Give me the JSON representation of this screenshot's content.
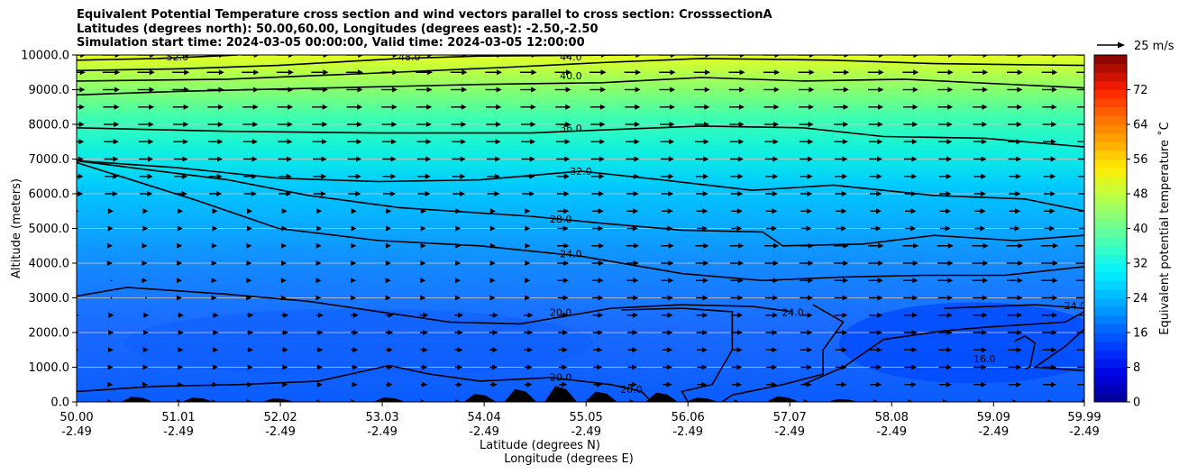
{
  "title_lines": [
    "Equivalent Potential Temperature cross section and wind vectors parallel to cross section: CrosssectionA",
    "Latitudes (degrees north): 50.00,60.00, Longitudes (degrees east): -2.50,-2.50",
    "Simulation start time: 2024-03-05 00:00:00, Valid time: 2024-03-05 12:00:00"
  ],
  "chart_data": {
    "type": "heatmap",
    "subtype": "filled-contour cross section with contour lines and wind quiver",
    "ylabel": "Altitude (meters)",
    "xlabel_lines": [
      "Latitude (degrees N)",
      "Longitude (degrees E)"
    ],
    "ylim": [
      0,
      10000
    ],
    "xlim": [
      50.0,
      59.99
    ],
    "y_ticks": [
      "0.0",
      "1000.0",
      "2000.0",
      "3000.0",
      "4000.0",
      "5000.0",
      "6000.0",
      "7000.0",
      "8000.0",
      "9000.0",
      "10000.0"
    ],
    "x_ticks": [
      {
        "lat": "50.00",
        "lon": "-2.49"
      },
      {
        "lat": "51.01",
        "lon": "-2.49"
      },
      {
        "lat": "52.02",
        "lon": "-2.49"
      },
      {
        "lat": "53.03",
        "lon": "-2.49"
      },
      {
        "lat": "54.04",
        "lon": "-2.49"
      },
      {
        "lat": "55.05",
        "lon": "-2.49"
      },
      {
        "lat": "56.06",
        "lon": "-2.49"
      },
      {
        "lat": "57.07",
        "lon": "-2.49"
      },
      {
        "lat": "58.08",
        "lon": "-2.49"
      },
      {
        "lat": "59.09",
        "lon": "-2.49"
      },
      {
        "lat": "59.99",
        "lon": "-2.49"
      }
    ],
    "grid": "horizontal",
    "colorbar": {
      "label": "Equivalent potential temperature ˚C",
      "min": 0,
      "max": 80,
      "step": 2,
      "ticks": [
        "0",
        "8",
        "16",
        "24",
        "32",
        "40",
        "48",
        "56",
        "64",
        "72"
      ]
    },
    "quiver_key": {
      "label": "25 m/s",
      "speed": 25
    },
    "contour_levels": [
      16,
      20,
      24,
      28,
      32,
      36,
      40,
      44,
      48,
      52
    ],
    "contour_labels": [
      {
        "text": "52.0",
        "lat": 51.0,
        "alt": 9950
      },
      {
        "text": "48.0",
        "lat": 53.3,
        "alt": 9950
      },
      {
        "text": "44.0",
        "lat": 54.9,
        "alt": 9950
      },
      {
        "text": "40.0",
        "lat": 54.9,
        "alt": 9400
      },
      {
        "text": "36.0",
        "lat": 54.9,
        "alt": 7900
      },
      {
        "text": "32.0",
        "lat": 55.0,
        "alt": 6650
      },
      {
        "text": "28.0",
        "lat": 54.8,
        "alt": 5270
      },
      {
        "text": "24.0",
        "lat": 54.9,
        "alt": 4270
      },
      {
        "text": "20.0",
        "lat": 54.8,
        "alt": 2580
      },
      {
        "text": "24.0",
        "lat": 57.1,
        "alt": 2580
      },
      {
        "text": "24.0",
        "lat": 59.9,
        "alt": 2780
      },
      {
        "text": "16.0",
        "lat": 59.0,
        "alt": 1250
      },
      {
        "text": "20.0",
        "lat": 54.8,
        "alt": 720
      },
      {
        "text": "20.0",
        "lat": 55.5,
        "alt": 370
      }
    ],
    "contour_lines": [
      {
        "level": 52,
        "pts": [
          [
            50.0,
            9850
          ],
          [
            50.8,
            9900
          ],
          [
            51.6,
            10000
          ]
        ]
      },
      {
        "level": 48,
        "pts": [
          [
            50.0,
            9550
          ],
          [
            51.0,
            9600
          ],
          [
            52.0,
            9700
          ],
          [
            53.2,
            9900
          ],
          [
            54.0,
            9970
          ],
          [
            55.5,
            10000
          ]
        ]
      },
      {
        "level": 44,
        "pts": [
          [
            50.0,
            9250
          ],
          [
            51.5,
            9300
          ],
          [
            53.0,
            9480
          ],
          [
            54.3,
            9650
          ],
          [
            55.2,
            9780
          ],
          [
            56.2,
            9900
          ],
          [
            57.5,
            9850
          ],
          [
            58.5,
            9750
          ],
          [
            59.99,
            9700
          ]
        ]
      },
      {
        "level": 40,
        "pts": [
          [
            50.0,
            8850
          ],
          [
            51.0,
            8950
          ],
          [
            52.5,
            9050
          ],
          [
            54.0,
            9150
          ],
          [
            55.2,
            9200
          ],
          [
            56.2,
            9350
          ],
          [
            57.2,
            9250
          ],
          [
            58.2,
            9300
          ],
          [
            59.99,
            9050
          ]
        ]
      },
      {
        "level": 36,
        "pts": [
          [
            50.0,
            7900
          ],
          [
            51.5,
            7800
          ],
          [
            53.0,
            7750
          ],
          [
            54.5,
            7750
          ],
          [
            55.3,
            7850
          ],
          [
            56.2,
            7950
          ],
          [
            57.2,
            7900
          ],
          [
            58.0,
            7650
          ],
          [
            59.0,
            7600
          ],
          [
            59.99,
            7350
          ]
        ]
      },
      {
        "level": 32,
        "pts": [
          [
            50.0,
            6950
          ],
          [
            51.0,
            6750
          ],
          [
            52.0,
            6450
          ],
          [
            53.0,
            6350
          ],
          [
            54.0,
            6400
          ],
          [
            55.0,
            6650
          ],
          [
            55.8,
            6400
          ],
          [
            56.7,
            6100
          ],
          [
            57.5,
            6250
          ],
          [
            58.5,
            5950
          ],
          [
            59.4,
            5850
          ],
          [
            59.99,
            5500
          ]
        ]
      },
      {
        "level": 28,
        "pts": [
          [
            50.0,
            6950
          ],
          [
            51.5,
            6400
          ],
          [
            52.3,
            5950
          ],
          [
            53.2,
            5600
          ],
          [
            54.5,
            5350
          ],
          [
            55.2,
            5150
          ],
          [
            56.0,
            4950
          ],
          [
            56.8,
            4900
          ],
          [
            57.0,
            4500
          ],
          [
            57.8,
            4550
          ],
          [
            58.5,
            4800
          ],
          [
            59.3,
            4650
          ],
          [
            59.99,
            4800
          ]
        ]
      },
      {
        "level": 24,
        "pts": [
          [
            50.0,
            6900
          ],
          [
            51.2,
            5800
          ],
          [
            52.0,
            5000
          ],
          [
            53.0,
            4650
          ],
          [
            54.0,
            4500
          ],
          [
            55.0,
            4200
          ],
          [
            56.0,
            3700
          ],
          [
            56.8,
            3500
          ],
          [
            57.6,
            3600
          ],
          [
            58.4,
            3650
          ],
          [
            59.2,
            3650
          ],
          [
            59.99,
            3900
          ]
        ]
      },
      {
        "level": 20,
        "pts": [
          [
            50.0,
            3050
          ],
          [
            50.5,
            3300
          ],
          [
            51.5,
            3100
          ],
          [
            52.3,
            2900
          ],
          [
            53.0,
            2600
          ],
          [
            53.7,
            2300
          ],
          [
            54.4,
            2250
          ],
          [
            55.3,
            2700
          ],
          [
            56.0,
            2800
          ],
          [
            56.7,
            2750
          ],
          [
            57.1,
            2600
          ]
        ]
      },
      {
        "level": 20,
        "pts": [
          [
            50.0,
            300
          ],
          [
            50.8,
            450
          ],
          [
            51.6,
            500
          ],
          [
            52.4,
            600
          ],
          [
            53.1,
            1050
          ],
          [
            53.5,
            800
          ],
          [
            54.0,
            600
          ],
          [
            54.7,
            700
          ],
          [
            55.3,
            500
          ],
          [
            55.6,
            300
          ],
          [
            55.7,
            0
          ]
        ]
      },
      {
        "level": 24,
        "pts": [
          [
            56.06,
            0
          ],
          [
            56.0,
            300
          ],
          [
            56.3,
            500
          ],
          [
            56.5,
            1500
          ],
          [
            56.5,
            2600
          ],
          [
            56.0,
            2700
          ],
          [
            55.4,
            2650
          ]
        ]
      },
      {
        "level": 24,
        "pts": [
          [
            57.3,
            2800
          ],
          [
            57.6,
            2300
          ],
          [
            57.4,
            1500
          ],
          [
            57.4,
            800
          ],
          [
            57.0,
            500
          ],
          [
            56.5,
            200
          ],
          [
            56.4,
            0
          ]
        ]
      },
      {
        "level": 24,
        "pts": [
          [
            57.2,
            500
          ],
          [
            57.6,
            1000
          ],
          [
            58.0,
            1800
          ],
          [
            58.6,
            2050
          ],
          [
            59.0,
            2150
          ],
          [
            59.8,
            2300
          ],
          [
            59.99,
            2600
          ]
        ]
      },
      {
        "level": 16,
        "pts": [
          [
            58.6,
            2700
          ],
          [
            59.5,
            2800
          ],
          [
            59.99,
            2700
          ],
          [
            59.99,
            2100
          ],
          [
            59.8,
            1600
          ],
          [
            59.5,
            1000
          ],
          [
            59.99,
            900
          ]
        ]
      },
      {
        "level": 16,
        "pts": [
          [
            59.3,
            1750
          ],
          [
            59.4,
            1900
          ],
          [
            59.5,
            1700
          ],
          [
            59.45,
            1000
          ],
          [
            59.4,
            950
          ]
        ]
      }
    ],
    "terrain_peaks": [
      {
        "lat": 50.6,
        "alt": 150
      },
      {
        "lat": 51.2,
        "alt": 120
      },
      {
        "lat": 52.0,
        "alt": 100
      },
      {
        "lat": 53.1,
        "alt": 130
      },
      {
        "lat": 54.0,
        "alt": 230
      },
      {
        "lat": 54.4,
        "alt": 370
      },
      {
        "lat": 54.8,
        "alt": 460
      },
      {
        "lat": 55.2,
        "alt": 300
      },
      {
        "lat": 55.8,
        "alt": 270
      },
      {
        "lat": 56.2,
        "alt": 120
      },
      {
        "lat": 57.0,
        "alt": 160
      },
      {
        "lat": 57.6,
        "alt": 80
      }
    ]
  }
}
